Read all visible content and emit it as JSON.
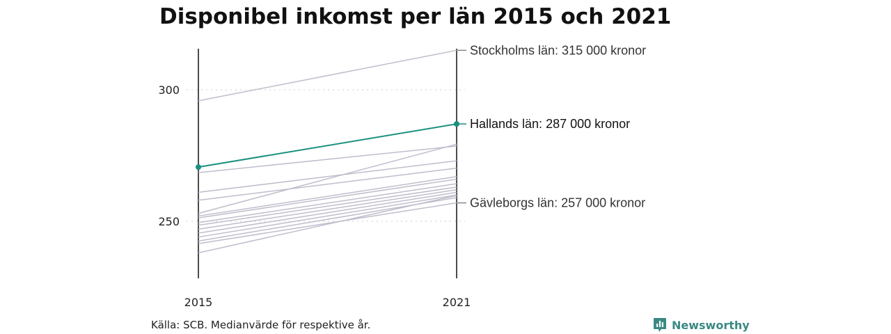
{
  "chart_data": {
    "type": "line",
    "title": "Disponibel inkomst per län 2015 och 2021",
    "x": [
      "2015",
      "2021"
    ],
    "yticks": [
      250,
      300
    ],
    "ylim": [
      228,
      318
    ],
    "grid": true,
    "series": [
      {
        "name": "Stockholms län: 315 000 kronor",
        "values": [
          295.8,
          315.0
        ],
        "highlight": false,
        "labeled": true
      },
      {
        "name": "Hallands län: 287 000 kronor",
        "values": [
          270.6,
          287.0
        ],
        "highlight": true,
        "labeled": true
      },
      {
        "name": "Gävleborgs län: 257 000 kronor",
        "values": [
          241.5,
          257.0
        ],
        "highlight": false,
        "labeled": true
      },
      {
        "name": "",
        "values": [
          268.5,
          278.6
        ]
      },
      {
        "name": "",
        "values": [
          253.0,
          279.3
        ]
      },
      {
        "name": "",
        "values": [
          261.0,
          273.0
        ]
      },
      {
        "name": "",
        "values": [
          258.0,
          270.2
        ]
      },
      {
        "name": "",
        "values": [
          252.0,
          267.0
        ]
      },
      {
        "name": "",
        "values": [
          251.3,
          266.0
        ]
      },
      {
        "name": "",
        "values": [
          249.5,
          264.3
        ]
      },
      {
        "name": "",
        "values": [
          248.5,
          263.0
        ]
      },
      {
        "name": "",
        "values": [
          247.0,
          262.0
        ]
      },
      {
        "name": "",
        "values": [
          245.5,
          261.0
        ]
      },
      {
        "name": "",
        "values": [
          244.0,
          260.0
        ]
      },
      {
        "name": "",
        "values": [
          242.5,
          259.0
        ]
      },
      {
        "name": "",
        "values": [
          238.0,
          259.8
        ]
      }
    ]
  },
  "footer": {
    "source": "Källa: SCB. Medianvärde för respektive år.",
    "brand": "Newsworthy"
  },
  "colors": {
    "highlight": "#1a8f80",
    "other_lines": "#bfbdcc",
    "axis": "#111111",
    "grid": "#dddddd",
    "brand": "#3a8a83"
  },
  "icons": {
    "brand": "newsworthy-logo-icon"
  }
}
